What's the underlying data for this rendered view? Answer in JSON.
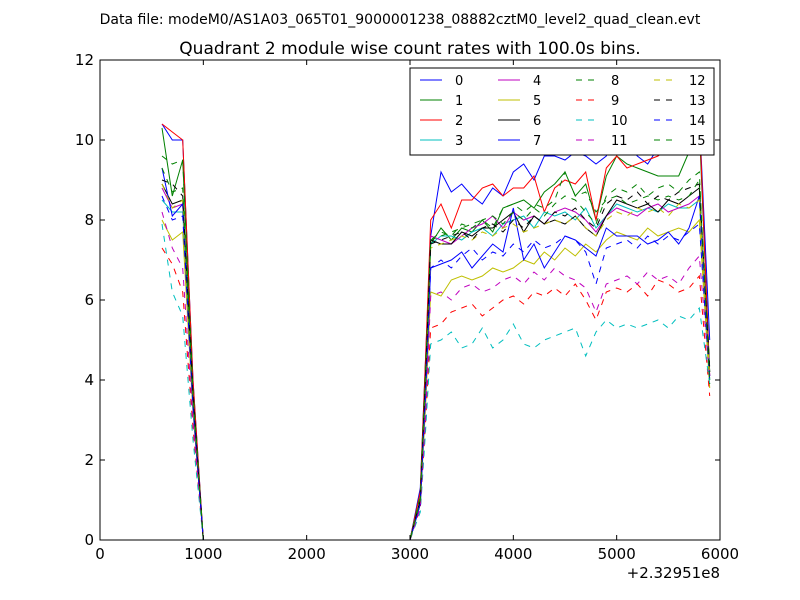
{
  "suptitle": "Data file: modeM0/AS1A03_065T01_9000001238_08882cztM0_level2_quad_clean.evt",
  "chart_data": {
    "type": "line",
    "title": "Quadrant 2 module wise count rates with 100.0s bins.",
    "xlabel": "",
    "ylabel": "",
    "xlim": [
      0,
      6000
    ],
    "ylim": [
      0,
      12
    ],
    "x_offset_label": "+2.32951e8",
    "xticks": [
      0,
      1000,
      2000,
      3000,
      4000,
      5000,
      6000
    ],
    "yticks": [
      0,
      2,
      4,
      6,
      8,
      10,
      12
    ],
    "grid": false,
    "legend_position": "top-right",
    "x": [
      600,
      700,
      800,
      900,
      1000,
      1100,
      1200,
      1300,
      1400,
      1500,
      1600,
      1700,
      1800,
      1900,
      2000,
      2100,
      2200,
      2300,
      2400,
      2500,
      2600,
      2700,
      2800,
      2900,
      3000,
      3100,
      3150,
      3200,
      3300,
      3400,
      3500,
      3600,
      3700,
      3800,
      3900,
      4000,
      4100,
      4200,
      4300,
      4400,
      4500,
      4600,
      4700,
      4800,
      4900,
      5000,
      5100,
      5200,
      5300,
      5400,
      5500,
      5600,
      5700,
      5800,
      5900
    ],
    "series": [
      {
        "name": "0",
        "color": "#0000ff",
        "dash": "solid",
        "values": [
          10.4,
          10.0,
          10.0,
          4.0,
          0,
          0,
          0,
          0,
          0,
          0,
          0,
          0,
          0,
          0,
          0,
          0,
          0,
          0,
          0,
          0,
          0,
          0,
          0,
          0,
          0,
          1.3,
          4.5,
          7.6,
          9.2,
          8.7,
          8.9,
          8.6,
          8.4,
          8.8,
          8.6,
          9.2,
          9.4,
          9.0,
          9.6,
          9.6,
          9.5,
          9.7,
          9.6,
          9.4,
          9.6,
          10.2,
          9.9,
          9.6,
          9.4,
          9.8,
          9.9,
          9.8,
          9.7,
          10.6,
          5.0
        ]
      },
      {
        "name": "1",
        "color": "#008000",
        "dash": "solid",
        "values": [
          10.3,
          8.6,
          9.5,
          3.8,
          0,
          0,
          0,
          0,
          0,
          0,
          0,
          0,
          0,
          0,
          0,
          0,
          0,
          0,
          0,
          0,
          0,
          0,
          0,
          0,
          0,
          1.2,
          4.4,
          7.4,
          7.8,
          7.5,
          7.8,
          7.7,
          8.0,
          7.7,
          8.3,
          8.4,
          8.5,
          8.3,
          8.7,
          8.9,
          9.2,
          8.6,
          8.9,
          8.0,
          9.1,
          9.6,
          9.4,
          9.3,
          9.2,
          9.1,
          9.1,
          9.1,
          9.7,
          10.3,
          4.2
        ]
      },
      {
        "name": "2",
        "color": "#ff0000",
        "dash": "solid",
        "values": [
          10.4,
          10.2,
          10.0,
          4.0,
          0,
          0,
          0,
          0,
          0,
          0,
          0,
          0,
          0,
          0,
          0,
          0,
          0,
          0,
          0,
          0,
          0,
          0,
          0,
          0,
          0,
          1.2,
          4.5,
          8.0,
          8.4,
          7.8,
          8.5,
          8.5,
          8.8,
          8.9,
          8.6,
          8.8,
          8.8,
          9.1,
          8.2,
          8.8,
          9.0,
          8.9,
          9.2,
          8.0,
          9.3,
          9.6,
          9.3,
          9.4,
          9.5,
          9.6,
          9.8,
          9.9,
          10.0,
          10.6,
          4.1
        ]
      },
      {
        "name": "3",
        "color": "#00bfbf",
        "dash": "solid",
        "values": [
          8.5,
          8.2,
          8.2,
          3.3,
          0,
          0,
          0,
          0,
          0,
          0,
          0,
          0,
          0,
          0,
          0,
          0,
          0,
          0,
          0,
          0,
          0,
          0,
          0,
          0,
          0,
          1.0,
          3.8,
          7.4,
          7.6,
          7.6,
          7.5,
          7.7,
          7.8,
          7.6,
          7.9,
          8.0,
          8.1,
          7.8,
          8.2,
          8.1,
          8.2,
          8.0,
          8.3,
          7.8,
          8.1,
          8.4,
          8.3,
          8.2,
          8.3,
          8.2,
          8.4,
          8.3,
          8.3,
          8.5,
          4.0
        ]
      },
      {
        "name": "4",
        "color": "#bf00bf",
        "dash": "solid",
        "values": [
          8.8,
          8.3,
          8.4,
          3.5,
          0,
          0,
          0,
          0,
          0,
          0,
          0,
          0,
          0,
          0,
          0,
          0,
          0,
          0,
          0,
          0,
          0,
          0,
          0,
          0,
          0,
          1.0,
          3.9,
          7.6,
          7.5,
          7.4,
          7.6,
          7.8,
          7.9,
          8.1,
          7.8,
          8.2,
          8.0,
          8.1,
          7.9,
          8.2,
          8.3,
          8.2,
          8.0,
          7.7,
          8.1,
          8.3,
          8.2,
          8.1,
          8.3,
          8.4,
          8.2,
          8.3,
          8.4,
          8.6,
          4.1
        ]
      },
      {
        "name": "5",
        "color": "#bfbf00",
        "dash": "solid",
        "values": [
          8.0,
          7.5,
          7.7,
          3.2,
          0,
          0,
          0,
          0,
          0,
          0,
          0,
          0,
          0,
          0,
          0,
          0,
          0,
          0,
          0,
          0,
          0,
          0,
          0,
          0,
          0,
          0.9,
          3.3,
          6.2,
          6.1,
          6.5,
          6.6,
          6.5,
          6.6,
          6.8,
          6.7,
          6.8,
          7.0,
          6.9,
          7.2,
          7.0,
          7.3,
          7.1,
          7.4,
          7.2,
          7.5,
          7.7,
          7.6,
          7.5,
          7.8,
          7.6,
          7.7,
          7.8,
          7.7,
          8.0,
          3.8
        ]
      },
      {
        "name": "6",
        "color": "#000000",
        "dash": "solid",
        "values": [
          8.9,
          8.4,
          8.5,
          3.4,
          0,
          0,
          0,
          0,
          0,
          0,
          0,
          0,
          0,
          0,
          0,
          0,
          0,
          0,
          0,
          0,
          0,
          0,
          0,
          0,
          0,
          1.0,
          3.9,
          7.5,
          7.4,
          7.4,
          7.7,
          7.6,
          7.8,
          7.8,
          8.0,
          8.2,
          7.7,
          8.1,
          7.9,
          8.0,
          7.9,
          8.1,
          7.8,
          7.6,
          8.1,
          8.5,
          8.4,
          8.3,
          8.4,
          8.2,
          8.5,
          8.4,
          8.6,
          8.8,
          4.2
        ]
      },
      {
        "name": "7",
        "color": "#0000ff",
        "dash": "solid",
        "values": [
          9.3,
          8.1,
          8.4,
          3.4,
          0,
          0,
          0,
          0,
          0,
          0,
          0,
          0,
          0,
          0,
          0,
          0,
          0,
          0,
          0,
          0,
          0,
          0,
          0,
          0,
          0,
          0.9,
          3.7,
          6.8,
          6.9,
          7.0,
          7.2,
          6.8,
          7.1,
          7.4,
          7.2,
          8.3,
          7.0,
          7.4,
          6.8,
          7.2,
          7.6,
          7.5,
          7.3,
          7.1,
          7.8,
          7.6,
          7.6,
          7.6,
          7.4,
          7.5,
          7.7,
          7.4,
          7.8,
          8.6,
          4.1
        ]
      },
      {
        "name": "8",
        "color": "#008000",
        "dash": "dashed",
        "values": [
          9.6,
          9.4,
          9.5,
          3.8,
          0,
          0,
          0,
          0,
          0,
          0,
          0,
          0,
          0,
          0,
          0,
          0,
          0,
          0,
          0,
          0,
          0,
          0,
          0,
          0,
          0,
          1.1,
          4.2,
          7.5,
          7.6,
          7.7,
          7.8,
          7.9,
          8.0,
          7.8,
          8.3,
          8.4,
          8.2,
          8.4,
          8.3,
          8.5,
          9.2,
          8.6,
          8.7,
          8.2,
          8.5,
          8.6,
          8.4,
          8.5,
          8.6,
          8.5,
          8.6,
          8.5,
          8.6,
          9.0,
          4.0
        ]
      },
      {
        "name": "9",
        "color": "#ff0000",
        "dash": "dashed",
        "values": [
          7.3,
          6.9,
          6.2,
          2.8,
          0,
          0,
          0,
          0,
          0,
          0,
          0,
          0,
          0,
          0,
          0,
          0,
          0,
          0,
          0,
          0,
          0,
          0,
          0,
          0,
          0,
          0.8,
          2.9,
          5.3,
          5.4,
          5.7,
          5.8,
          5.9,
          5.6,
          5.8,
          6.0,
          6.1,
          5.9,
          6.2,
          6.1,
          6.3,
          6.1,
          6.4,
          6.0,
          5.5,
          6.2,
          6.3,
          6.2,
          6.4,
          6.1,
          6.5,
          6.4,
          6.2,
          6.3,
          6.6,
          3.6
        ]
      },
      {
        "name": "10",
        "color": "#00bfbf",
        "dash": "dashed",
        "values": [
          7.9,
          6.2,
          5.6,
          2.5,
          0,
          0,
          0,
          0,
          0,
          0,
          0,
          0,
          0,
          0,
          0,
          0,
          0,
          0,
          0,
          0,
          0,
          0,
          0,
          0,
          0,
          0.7,
          2.7,
          4.9,
          5.0,
          5.2,
          4.8,
          4.9,
          5.3,
          4.8,
          5.0,
          5.4,
          4.9,
          4.8,
          5.0,
          5.1,
          5.2,
          5.3,
          4.6,
          5.2,
          5.5,
          5.3,
          5.4,
          5.3,
          5.4,
          5.5,
          5.3,
          5.6,
          5.5,
          5.8,
          3.9
        ]
      },
      {
        "name": "11",
        "color": "#bf00bf",
        "dash": "dashed",
        "values": [
          8.2,
          7.3,
          6.8,
          3.0,
          0,
          0,
          0,
          0,
          0,
          0,
          0,
          0,
          0,
          0,
          0,
          0,
          0,
          0,
          0,
          0,
          0,
          0,
          0,
          0,
          0,
          0.8,
          3.1,
          6.1,
          6.2,
          6.0,
          6.3,
          6.4,
          6.2,
          6.3,
          6.5,
          6.6,
          6.4,
          6.7,
          6.5,
          6.8,
          6.6,
          6.5,
          6.3,
          5.7,
          6.4,
          6.5,
          6.6,
          6.4,
          6.7,
          6.5,
          6.6,
          6.4,
          6.8,
          7.1,
          4.0
        ]
      },
      {
        "name": "12",
        "color": "#bfbf00",
        "dash": "dashed",
        "values": [
          8.9,
          8.3,
          8.5,
          3.5,
          0,
          0,
          0,
          0,
          0,
          0,
          0,
          0,
          0,
          0,
          0,
          0,
          0,
          0,
          0,
          0,
          0,
          0,
          0,
          0,
          0,
          1.0,
          3.9,
          7.3,
          7.4,
          7.5,
          7.6,
          7.5,
          7.7,
          7.6,
          7.8,
          7.9,
          7.7,
          7.8,
          7.9,
          8.0,
          7.9,
          8.1,
          7.8,
          7.6,
          8.0,
          8.2,
          8.1,
          8.3,
          8.2,
          8.3,
          8.1,
          8.4,
          8.3,
          8.5,
          4.1
        ]
      },
      {
        "name": "13",
        "color": "#000000",
        "dash": "dashed",
        "values": [
          9.0,
          8.9,
          8.6,
          3.6,
          0,
          0,
          0,
          0,
          0,
          0,
          0,
          0,
          0,
          0,
          0,
          0,
          0,
          0,
          0,
          0,
          0,
          0,
          0,
          0,
          0,
          1.0,
          4.0,
          7.4,
          7.5,
          7.6,
          7.7,
          7.5,
          7.8,
          7.9,
          7.7,
          8.0,
          7.8,
          8.1,
          7.9,
          8.2,
          8.1,
          8.3,
          8.0,
          7.8,
          8.4,
          8.6,
          8.5,
          8.7,
          8.4,
          8.6,
          8.5,
          8.7,
          8.8,
          8.9,
          4.3
        ]
      },
      {
        "name": "14",
        "color": "#0000ff",
        "dash": "dashed",
        "values": [
          8.6,
          8.0,
          8.1,
          3.3,
          0,
          0,
          0,
          0,
          0,
          0,
          0,
          0,
          0,
          0,
          0,
          0,
          0,
          0,
          0,
          0,
          0,
          0,
          0,
          0,
          0,
          0.9,
          3.6,
          6.8,
          7.0,
          6.8,
          7.1,
          7.3,
          7.0,
          7.2,
          7.1,
          7.4,
          7.2,
          7.5,
          7.3,
          7.4,
          7.6,
          7.5,
          7.2,
          6.4,
          7.3,
          7.4,
          7.5,
          7.3,
          7.6,
          7.4,
          7.6,
          7.5,
          7.7,
          7.9,
          4.0
        ]
      },
      {
        "name": "15",
        "color": "#008000",
        "dash": "dashed",
        "values": [
          9.3,
          8.7,
          8.8,
          3.6,
          0,
          0,
          0,
          0,
          0,
          0,
          0,
          0,
          0,
          0,
          0,
          0,
          0,
          0,
          0,
          0,
          0,
          0,
          0,
          0,
          0,
          1.0,
          4.1,
          7.5,
          7.7,
          7.6,
          7.9,
          7.8,
          8.0,
          8.1,
          7.9,
          8.2,
          8.0,
          8.3,
          8.1,
          8.4,
          8.6,
          8.5,
          8.2,
          7.9,
          8.6,
          8.8,
          8.7,
          8.9,
          8.6,
          8.8,
          8.9,
          8.7,
          9.0,
          9.2,
          3.9
        ]
      }
    ]
  }
}
